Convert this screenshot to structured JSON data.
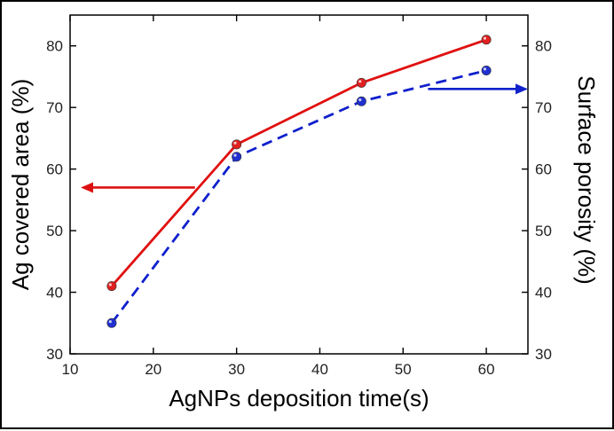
{
  "chart_data": {
    "type": "line",
    "xlabel": "AgNPs deposition time(s)",
    "ylabel": "Ag covered area (%)",
    "y2label": "Surface porosity (%)",
    "xlim": [
      10,
      65
    ],
    "ylim": [
      30,
      85
    ],
    "y2lim": [
      30,
      85
    ],
    "xticks": [
      10,
      20,
      30,
      40,
      50,
      60
    ],
    "yticks": [
      30,
      40,
      50,
      60,
      70,
      80
    ],
    "y2ticks": [
      30,
      40,
      50,
      60,
      70,
      80
    ],
    "grid": false,
    "series": [
      {
        "axis": "left",
        "style": "solid",
        "color": "#e01010",
        "marker_color": "#e02020",
        "x": [
          15,
          30,
          45,
          60
        ],
        "values": [
          41,
          64,
          74,
          81
        ]
      },
      {
        "axis": "right",
        "style": "dashed",
        "color": "#1020cc",
        "marker_color": "#2030d0",
        "x": [
          15,
          30,
          45,
          60
        ],
        "values": [
          35,
          62,
          71,
          76
        ]
      }
    ],
    "annotations": [
      {
        "type": "arrow",
        "direction": "left",
        "color": "#dd1111",
        "points_to": "left-axis",
        "y_value": 57
      },
      {
        "type": "arrow",
        "direction": "right",
        "color": "#1122cc",
        "points_to": "right-axis",
        "y_value": 73
      }
    ]
  }
}
